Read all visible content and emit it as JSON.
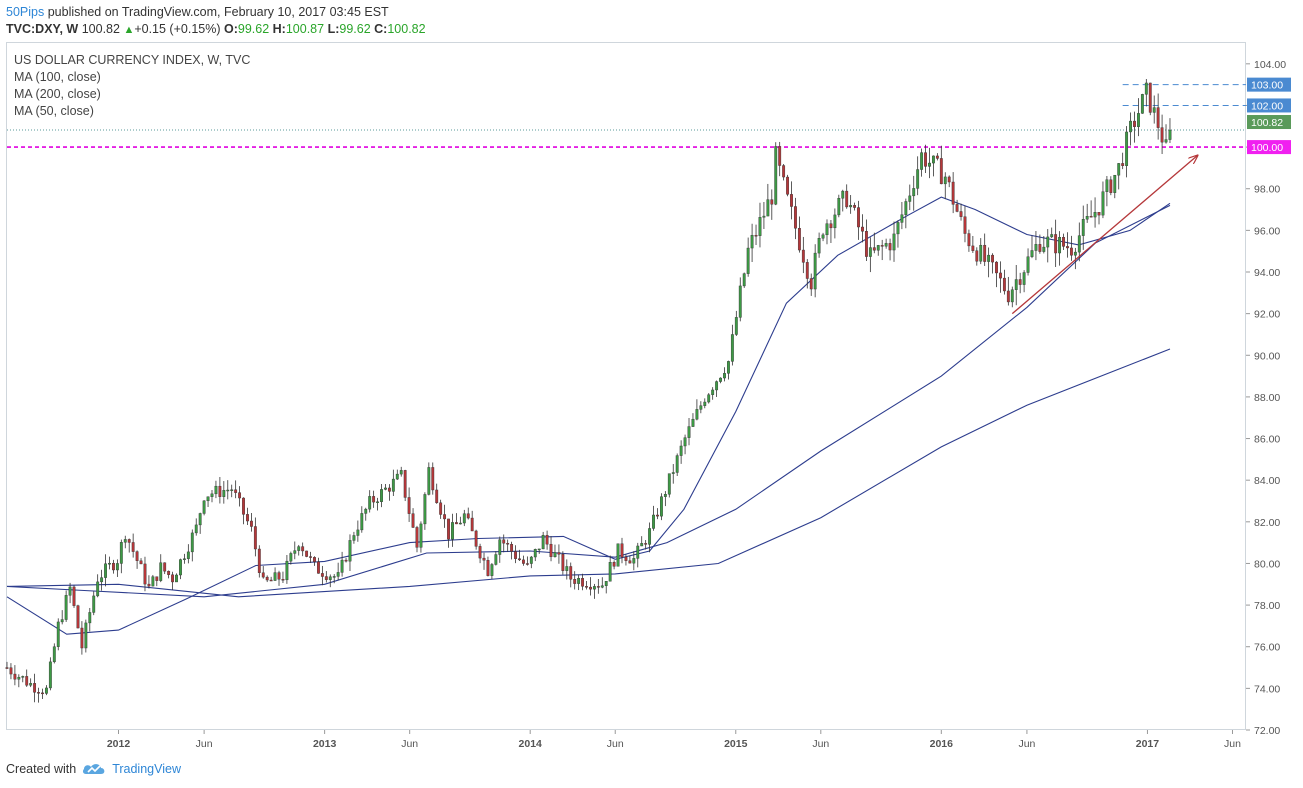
{
  "header": {
    "author": "50Pips",
    "published": "published on TradingView.com, February 10, 2017 03:45 EST",
    "symbol": "TVC:DXY, W",
    "last": "100.82",
    "change": "+0.15 (+0.15%)",
    "o_label": "O:",
    "o_value": "99.62",
    "h_label": "H:",
    "h_value": "100.87",
    "l_label": "L:",
    "l_value": "99.62",
    "c_label": "C:",
    "c_value": "100.82"
  },
  "legend": {
    "title": "US DOLLAR CURRENCY INDEX, W, TVC",
    "ma1": "MA (100, close)",
    "ma2": "MA (200, close)",
    "ma3": "MA (50, close)"
  },
  "footer": {
    "created": "Created with",
    "brand": "TradingView"
  },
  "colors": {
    "up": "#3d9a45",
    "down": "#b5373a",
    "ma": "#2d3d8e",
    "trend": "#b5373a",
    "support": "#e000e0",
    "level_box": "#4a8ad1",
    "price_box": "#5a9a5a",
    "support_box": "#f020f0"
  },
  "chart_data": {
    "type": "candlestick",
    "title": "US DOLLAR CURRENCY INDEX, W, TVC",
    "ylim": [
      72,
      105
    ],
    "y_ticks": [
      "72.00",
      "74.00",
      "76.00",
      "78.00",
      "80.00",
      "82.00",
      "84.00",
      "86.00",
      "88.00",
      "90.00",
      "92.00",
      "94.00",
      "96.00",
      "98.00",
      "100.00",
      "102.00",
      "104.00"
    ],
    "x_ticks": [
      "2012",
      "Jun",
      "2013",
      "Jun",
      "2014",
      "Jun",
      "2015",
      "Jun",
      "2016",
      "Jun",
      "2017",
      "Jun"
    ],
    "x_tick_dates": [
      "2012-01-01",
      "2012-06-01",
      "2013-01-01",
      "2013-06-01",
      "2014-01-01",
      "2014-06-01",
      "2015-01-01",
      "2015-06-01",
      "2016-01-01",
      "2016-06-01",
      "2017-01-01",
      "2017-06-01"
    ],
    "x_range": [
      "2011-06-17",
      "2017-06-25"
    ],
    "price_anchors": [
      {
        "date": "2011-06-17",
        "price": 75.0
      },
      {
        "date": "2011-07-29",
        "price": 74.2
      },
      {
        "date": "2011-08-26",
        "price": 73.9
      },
      {
        "date": "2011-09-16",
        "price": 77.0
      },
      {
        "date": "2011-10-07",
        "price": 78.8
      },
      {
        "date": "2011-10-28",
        "price": 76.0
      },
      {
        "date": "2011-11-25",
        "price": 79.3
      },
      {
        "date": "2011-12-30",
        "price": 80.2
      },
      {
        "date": "2012-01-13",
        "price": 81.5
      },
      {
        "date": "2012-02-24",
        "price": 78.8
      },
      {
        "date": "2012-03-16",
        "price": 79.8
      },
      {
        "date": "2012-04-06",
        "price": 79.3
      },
      {
        "date": "2012-05-18",
        "price": 81.7
      },
      {
        "date": "2012-06-01",
        "price": 83.3
      },
      {
        "date": "2012-07-20",
        "price": 83.6
      },
      {
        "date": "2012-08-24",
        "price": 81.6
      },
      {
        "date": "2012-09-14",
        "price": 79.0
      },
      {
        "date": "2012-10-19",
        "price": 79.4
      },
      {
        "date": "2012-11-16",
        "price": 81.1
      },
      {
        "date": "2012-12-14",
        "price": 79.8
      },
      {
        "date": "2013-01-25",
        "price": 79.3
      },
      {
        "date": "2013-02-22",
        "price": 81.5
      },
      {
        "date": "2013-03-22",
        "price": 82.9
      },
      {
        "date": "2013-05-17",
        "price": 84.2
      },
      {
        "date": "2013-06-14",
        "price": 80.8
      },
      {
        "date": "2013-07-05",
        "price": 84.5
      },
      {
        "date": "2013-08-09",
        "price": 81.4
      },
      {
        "date": "2013-09-06",
        "price": 82.3
      },
      {
        "date": "2013-10-18",
        "price": 79.7
      },
      {
        "date": "2013-11-08",
        "price": 81.2
      },
      {
        "date": "2013-12-27",
        "price": 79.8
      },
      {
        "date": "2014-01-24",
        "price": 81.2
      },
      {
        "date": "2014-03-14",
        "price": 79.3
      },
      {
        "date": "2014-05-09",
        "price": 79.0
      },
      {
        "date": "2014-06-06",
        "price": 80.6
      },
      {
        "date": "2014-07-04",
        "price": 80.2
      },
      {
        "date": "2014-08-01",
        "price": 81.5
      },
      {
        "date": "2014-09-05",
        "price": 84.0
      },
      {
        "date": "2014-10-03",
        "price": 86.0
      },
      {
        "date": "2014-11-07",
        "price": 88.0
      },
      {
        "date": "2014-12-19",
        "price": 89.7
      },
      {
        "date": "2015-01-23",
        "price": 95.0
      },
      {
        "date": "2015-03-06",
        "price": 97.7
      },
      {
        "date": "2015-03-13",
        "price": 99.5
      },
      {
        "date": "2015-04-03",
        "price": 97.4
      },
      {
        "date": "2015-05-15",
        "price": 93.6
      },
      {
        "date": "2015-06-05",
        "price": 96.2
      },
      {
        "date": "2015-07-17",
        "price": 97.6
      },
      {
        "date": "2015-08-28",
        "price": 94.7
      },
      {
        "date": "2015-10-09",
        "price": 95.6
      },
      {
        "date": "2015-11-27",
        "price": 99.6
      },
      {
        "date": "2016-01-08",
        "price": 98.6
      },
      {
        "date": "2016-02-12",
        "price": 95.8
      },
      {
        "date": "2016-04-29",
        "price": 93.0
      },
      {
        "date": "2016-06-24",
        "price": 95.5
      },
      {
        "date": "2016-08-19",
        "price": 95.2
      },
      {
        "date": "2016-10-07",
        "price": 97.2
      },
      {
        "date": "2016-11-11",
        "price": 99.0
      },
      {
        "date": "2016-12-02",
        "price": 100.8
      },
      {
        "date": "2016-12-30",
        "price": 102.6
      },
      {
        "date": "2017-01-20",
        "price": 101.1
      },
      {
        "date": "2017-02-03",
        "price": 99.9
      },
      {
        "date": "2017-02-10",
        "price": 100.8
      }
    ],
    "series": [
      {
        "name": "MA (50, close)",
        "points": [
          [
            "2011-06-17",
            78.4
          ],
          [
            "2011-10-01",
            76.6
          ],
          [
            "2012-01-01",
            76.8
          ],
          [
            "2012-05-01",
            78.3
          ],
          [
            "2012-09-01",
            79.9
          ],
          [
            "2013-01-01",
            80.1
          ],
          [
            "2013-06-01",
            81.0
          ],
          [
            "2013-10-01",
            81.2
          ],
          [
            "2014-03-01",
            81.3
          ],
          [
            "2014-06-01",
            80.2
          ],
          [
            "2014-08-01",
            80.6
          ],
          [
            "2014-10-01",
            82.6
          ],
          [
            "2015-01-01",
            87.3
          ],
          [
            "2015-04-01",
            92.5
          ],
          [
            "2015-07-01",
            94.8
          ],
          [
            "2015-11-01",
            96.7
          ],
          [
            "2016-01-01",
            97.6
          ],
          [
            "2016-03-01",
            97.0
          ],
          [
            "2016-06-01",
            95.8
          ],
          [
            "2016-09-01",
            95.3
          ],
          [
            "2016-12-01",
            96.0
          ],
          [
            "2017-02-10",
            97.3
          ]
        ]
      },
      {
        "name": "MA (100, close)",
        "points": [
          [
            "2011-06-17",
            78.9
          ],
          [
            "2011-11-01",
            78.7
          ],
          [
            "2012-06-01",
            78.4
          ],
          [
            "2013-01-01",
            79.0
          ],
          [
            "2013-07-01",
            80.5
          ],
          [
            "2014-01-01",
            80.6
          ],
          [
            "2014-06-01",
            80.3
          ],
          [
            "2014-09-01",
            81.0
          ],
          [
            "2015-01-01",
            82.6
          ],
          [
            "2015-06-01",
            85.4
          ],
          [
            "2016-01-01",
            89.0
          ],
          [
            "2016-06-01",
            92.3
          ],
          [
            "2016-10-01",
            95.4
          ],
          [
            "2017-02-10",
            97.2
          ]
        ]
      },
      {
        "name": "MA (200, close)",
        "points": [
          [
            "2011-06-17",
            78.9
          ],
          [
            "2012-01-01",
            79.0
          ],
          [
            "2012-08-01",
            78.4
          ],
          [
            "2013-06-01",
            78.9
          ],
          [
            "2014-01-01",
            79.4
          ],
          [
            "2014-06-01",
            79.5
          ],
          [
            "2014-12-01",
            80.0
          ],
          [
            "2015-06-01",
            82.2
          ],
          [
            "2016-01-01",
            85.6
          ],
          [
            "2016-06-01",
            87.6
          ],
          [
            "2017-02-10",
            90.3
          ]
        ]
      }
    ],
    "trendline": {
      "from": [
        "2016-05-06",
        92.0
      ],
      "to": [
        "2017-03-31",
        99.6
      ]
    },
    "support_level": 100.0,
    "dashed_levels": [
      103.0,
      102.0
    ],
    "last_price": 100.82,
    "price_labels": [
      "103.00",
      "102.00",
      "100.82",
      "100.00"
    ]
  }
}
